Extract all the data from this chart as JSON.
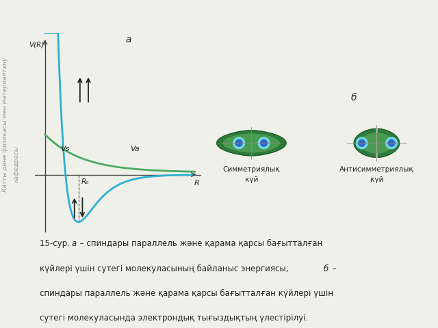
{
  "bg_color": "#f0f0eb",
  "title_a": "a",
  "title_b": "б",
  "graph_label_VR": "V(R)",
  "graph_label_R": "R",
  "graph_label_Va": "Va",
  "graph_label_Vs": "Vs",
  "graph_label_R0": "R₀",
  "sym_label1": "Симметриялық",
  "sym_label2": "күй",
  "antisym_label1": "Антисимметриялық",
  "antisym_label2": "күй",
  "curve_color_blue": "#2db0d0",
  "curve_color_green": "#4aaa60",
  "green_outer": "#2d7a3a",
  "green_mid": "#4a9a50",
  "green_inner_light": "#78c878",
  "cyan_ring": "#70d8e8",
  "blue_center": "#3366bb",
  "dark_border": "#1a5a28",
  "axis_color": "#444444",
  "text_color": "#222222",
  "gray_line": "#888888",
  "watermark_color": "#999999",
  "white": "#ffffff"
}
